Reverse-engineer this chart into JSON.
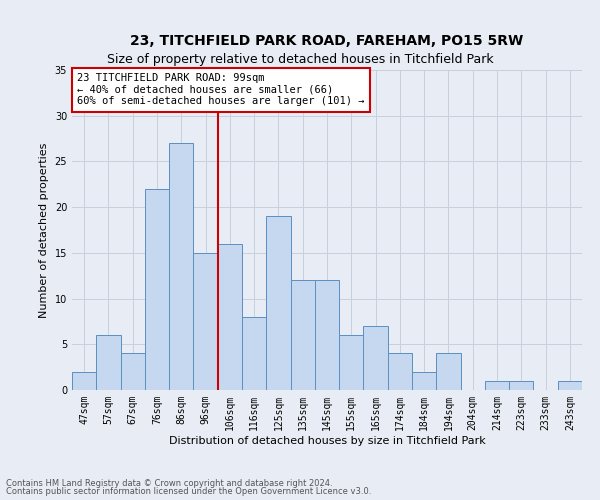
{
  "title": "23, TITCHFIELD PARK ROAD, FAREHAM, PO15 5RW",
  "subtitle": "Size of property relative to detached houses in Titchfield Park",
  "xlabel": "Distribution of detached houses by size in Titchfield Park",
  "ylabel": "Number of detached properties",
  "bar_labels": [
    "47sqm",
    "57sqm",
    "67sqm",
    "76sqm",
    "86sqm",
    "96sqm",
    "106sqm",
    "116sqm",
    "125sqm",
    "135sqm",
    "145sqm",
    "155sqm",
    "165sqm",
    "174sqm",
    "184sqm",
    "194sqm",
    "204sqm",
    "214sqm",
    "223sqm",
    "233sqm",
    "243sqm"
  ],
  "bar_values": [
    2,
    6,
    4,
    22,
    27,
    15,
    16,
    8,
    19,
    12,
    12,
    6,
    7,
    4,
    2,
    4,
    0,
    1,
    1,
    0,
    1
  ],
  "bar_color": "#c5d8f0",
  "bar_edge_color": "#5a8fc3",
  "vline_x": 5.5,
  "vline_color": "#cc0000",
  "annotation_text": "23 TITCHFIELD PARK ROAD: 99sqm\n← 40% of detached houses are smaller (66)\n60% of semi-detached houses are larger (101) →",
  "annotation_box_color": "#ffffff",
  "annotation_box_edge": "#cc0000",
  "ylim": [
    0,
    35
  ],
  "yticks": [
    0,
    5,
    10,
    15,
    20,
    25,
    30,
    35
  ],
  "grid_color": "#c8d0de",
  "background_color": "#e8edf5",
  "footer1": "Contains HM Land Registry data © Crown copyright and database right 2024.",
  "footer2": "Contains public sector information licensed under the Open Government Licence v3.0.",
  "title_fontsize": 10,
  "subtitle_fontsize": 9,
  "axis_label_fontsize": 8,
  "tick_fontsize": 7,
  "annotation_fontsize": 7.5,
  "footer_fontsize": 6
}
